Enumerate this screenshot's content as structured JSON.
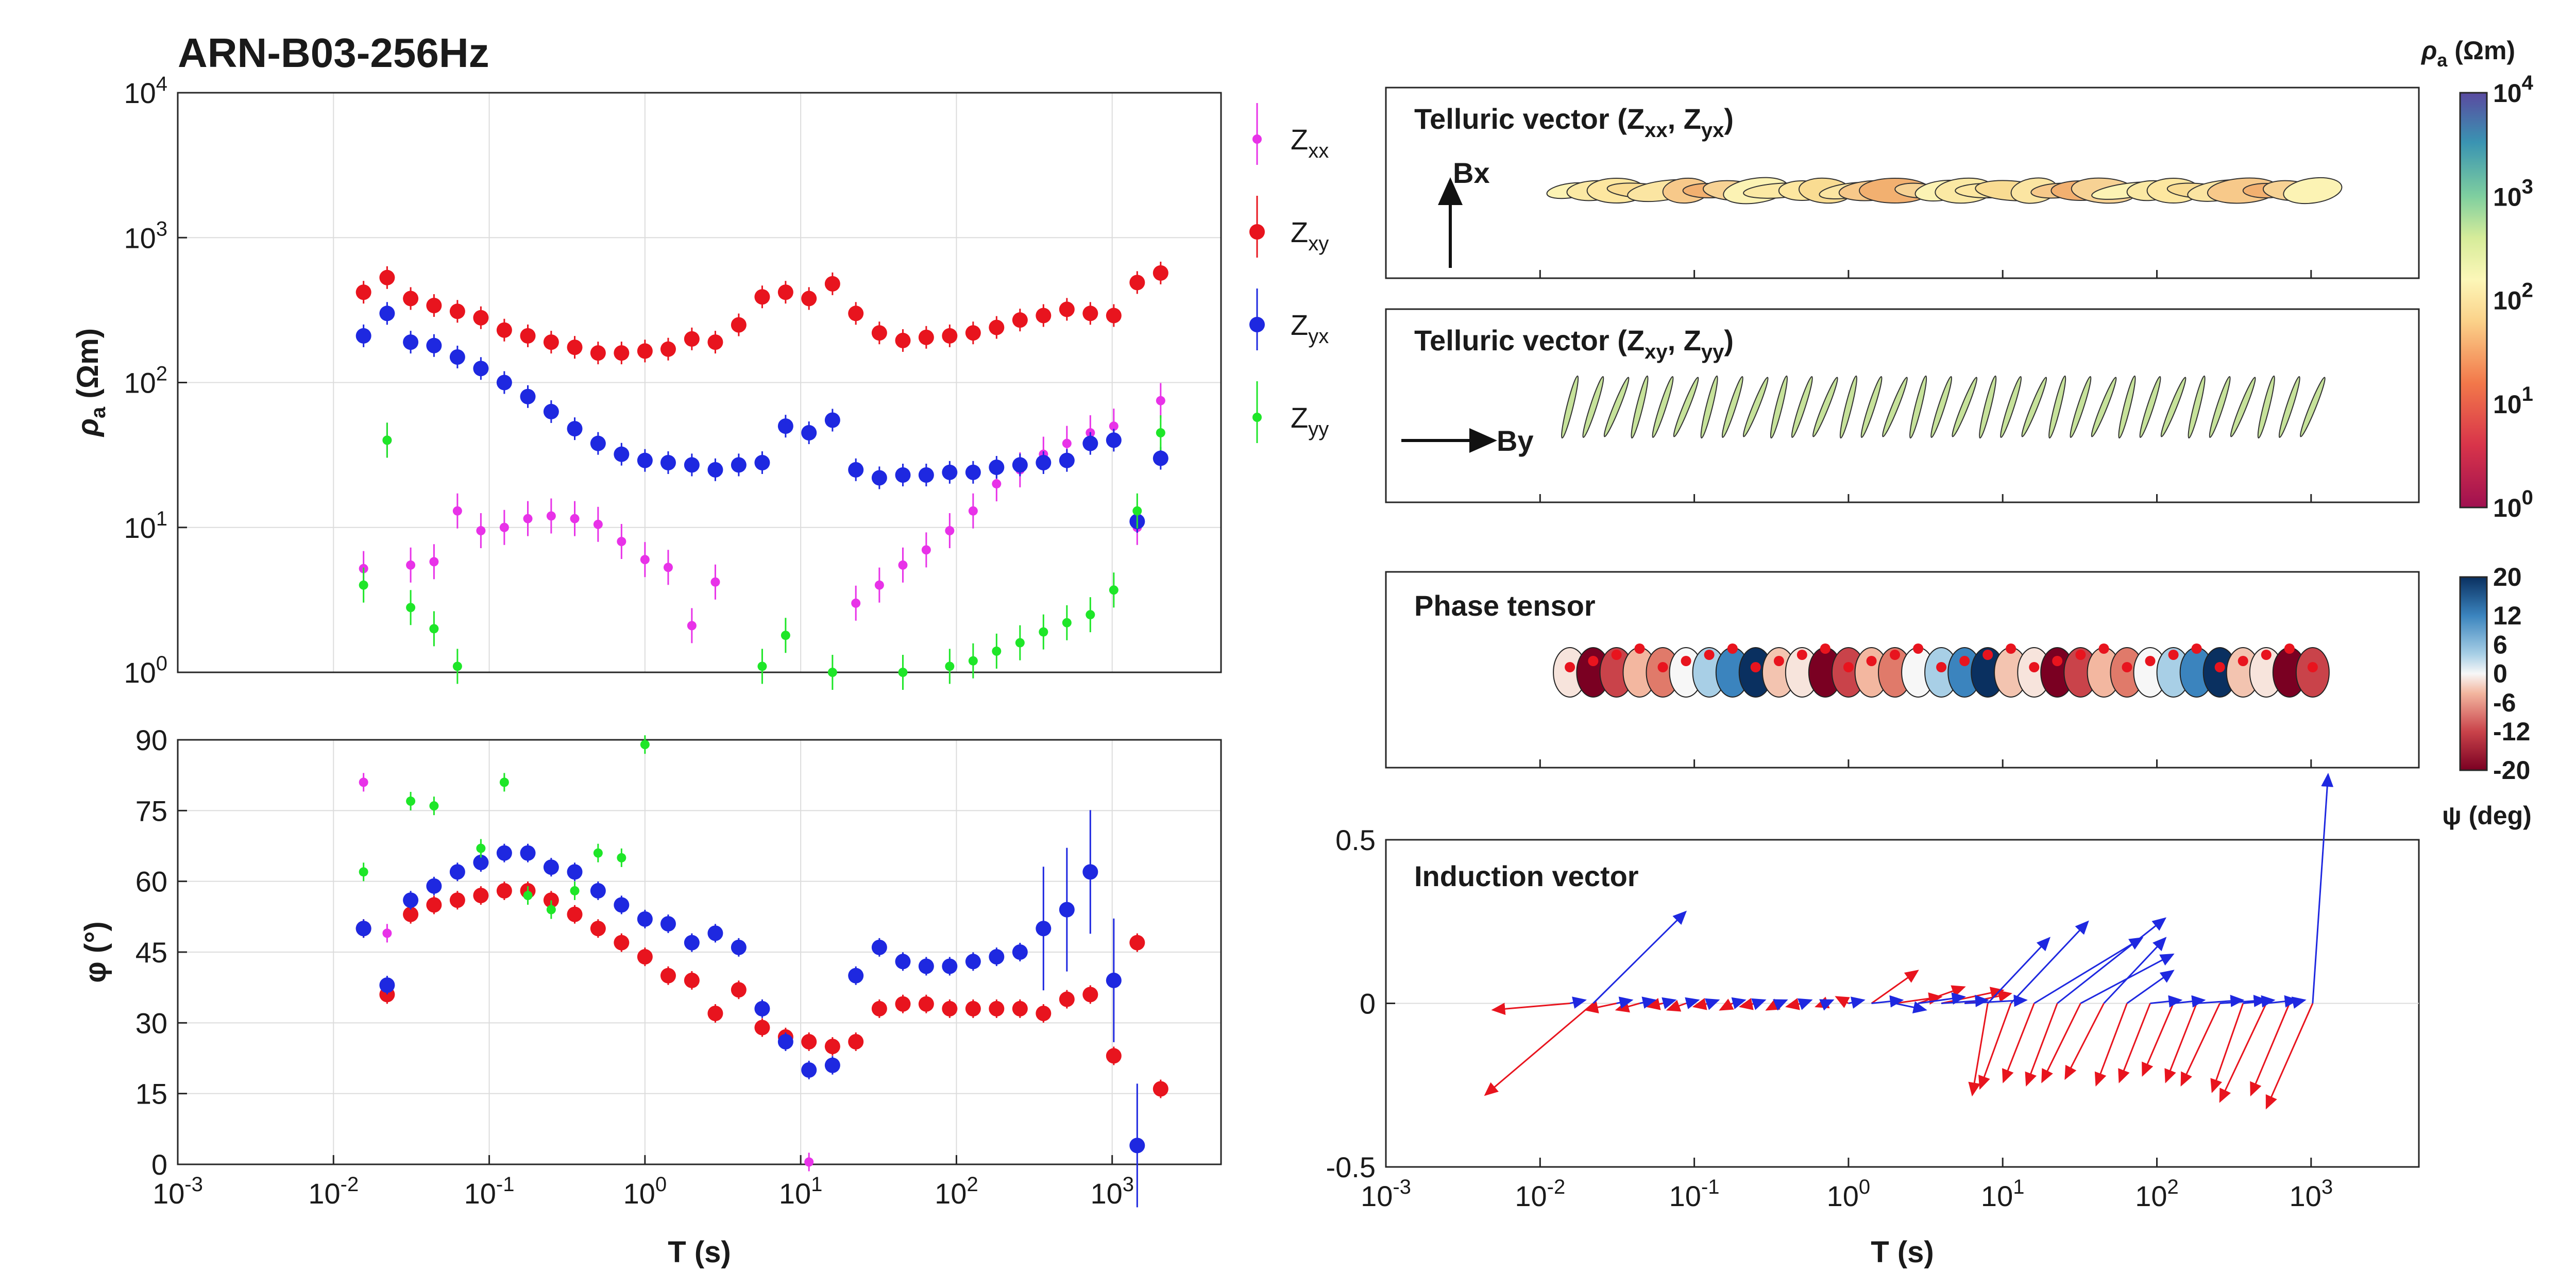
{
  "figure": {
    "title": "ARN-B03-256Hz",
    "xlabel": "T (s)"
  },
  "rho_panel": {
    "ylabel": "ρa (Ωm)",
    "yticks": [
      "10^0",
      "10^1",
      "10^2",
      "10^3",
      "10^4"
    ],
    "xticks": [
      "10^-3",
      "10^-2",
      "10^-1",
      "10^0",
      "10^1",
      "10^2",
      "10^3"
    ]
  },
  "phase_panel": {
    "ylabel": "φ (°)",
    "yticks": [
      "0",
      "15",
      "30",
      "45",
      "60",
      "75",
      "90"
    ]
  },
  "legend": {
    "items": [
      {
        "label": "Zxx",
        "sub": "xx",
        "color": "#e832e8"
      },
      {
        "label": "Zxy",
        "sub": "xy",
        "color": "#e8141e"
      },
      {
        "label": "Zyx",
        "sub": "yx",
        "color": "#1e28e0"
      },
      {
        "label": "Zyy",
        "sub": "yy",
        "color": "#1ee628"
      }
    ]
  },
  "right_panels": {
    "tel1_title": "Telluric vector (Zxx, Zyx)",
    "tel1_arrow": "Bx",
    "tel2_title": "Telluric vector (Zxy, Zyy)",
    "tel2_arrow": "By",
    "phase_tensor_title": "Phase tensor",
    "induction_title": "Induction vector",
    "induction_yticks": [
      "0.5",
      "0",
      "-0.5"
    ],
    "xticks": [
      "10^-3",
      "10^-2",
      "10^-1",
      "10^0",
      "10^1",
      "10^2",
      "10^3"
    ]
  },
  "colorbars": {
    "rho_label": "ρa (Ωm)",
    "rho_ticks": [
      "10^4",
      "10^3",
      "10^2",
      "10^1",
      "10^0"
    ],
    "psi_label": "ψ (deg)",
    "psi_ticks": [
      "20",
      "12",
      "6",
      "0",
      "-6",
      "-12",
      "-20"
    ]
  },
  "chart_data": [
    {
      "type": "scatter",
      "title": "ARN-B03-256Hz",
      "xlabel": "T (s)",
      "ylabel": "ρa (Ωm)",
      "xscale": "log",
      "yscale": "log",
      "xlim": [
        0.001,
        5000
      ],
      "ylim": [
        1,
        10000
      ],
      "grid": true,
      "legend": "right",
      "series": [
        {
          "name": "Zxx",
          "color": "#e832e8",
          "x": [
            0.0156,
            0.0221,
            0.0313,
            0.0442,
            0.0625,
            0.0884,
            0.125,
            0.177,
            0.25,
            0.354,
            0.5,
            0.707,
            1,
            1.41,
            2,
            2.83,
            4,
            5.66,
            8,
            11.3,
            16,
            22.6,
            32,
            45.3,
            64,
            90.5,
            128,
            181,
            256,
            362,
            512,
            724,
            1024,
            1448,
            2048
          ],
          "y": [
            5.2,
            40,
            5.5,
            5.8,
            13,
            9.5,
            10,
            11.5,
            12,
            11.5,
            10.5,
            8,
            6,
            5.3,
            2.1,
            4.2,
            null,
            null,
            null,
            null,
            null,
            3,
            4,
            5.5,
            7,
            9.5,
            13,
            20,
            25,
            32,
            38,
            45,
            50,
            10,
            75
          ]
        },
        {
          "name": "Zxy",
          "color": "#e8141e",
          "x": [
            0.0156,
            0.0221,
            0.0313,
            0.0442,
            0.0625,
            0.0884,
            0.125,
            0.177,
            0.25,
            0.354,
            0.5,
            0.707,
            1,
            1.41,
            2,
            2.83,
            4,
            5.66,
            8,
            11.3,
            16,
            22.6,
            32,
            45.3,
            64,
            90.5,
            128,
            181,
            256,
            362,
            512,
            724,
            1024,
            1448,
            2048
          ],
          "y": [
            420,
            530,
            380,
            340,
            310,
            280,
            230,
            210,
            190,
            175,
            160,
            160,
            165,
            170,
            200,
            190,
            250,
            390,
            420,
            380,
            480,
            300,
            220,
            195,
            205,
            210,
            220,
            240,
            270,
            290,
            320,
            300,
            290,
            490,
            570
          ]
        },
        {
          "name": "Zyx",
          "color": "#1e28e0",
          "x": [
            0.0156,
            0.0221,
            0.0313,
            0.0442,
            0.0625,
            0.0884,
            0.125,
            0.177,
            0.25,
            0.354,
            0.5,
            0.707,
            1,
            1.41,
            2,
            2.83,
            4,
            5.66,
            8,
            11.3,
            16,
            22.6,
            32,
            45.3,
            64,
            90.5,
            128,
            181,
            256,
            362,
            512,
            724,
            1024,
            1448,
            2048
          ],
          "y": [
            210,
            300,
            190,
            180,
            150,
            125,
            100,
            80,
            63,
            48,
            38,
            32,
            29,
            28,
            27,
            25,
            27,
            28,
            50,
            45,
            55,
            25,
            22,
            23,
            23,
            24,
            24,
            26,
            27,
            28,
            29,
            38,
            40,
            11,
            30
          ]
        },
        {
          "name": "Zyy",
          "color": "#1ee628",
          "x": [
            0.0156,
            0.0221,
            0.0313,
            0.0442,
            0.0625,
            5.66,
            8,
            16,
            45.3,
            90.5,
            128,
            181,
            256,
            362,
            512,
            724,
            1024,
            1448,
            2048
          ],
          "y": [
            4,
            40,
            2.8,
            2,
            1.1,
            1.1,
            1.8,
            1,
            1,
            1.1,
            1.2,
            1.4,
            1.6,
            1.9,
            2.2,
            2.5,
            3.7,
            13,
            45
          ]
        }
      ]
    },
    {
      "type": "scatter",
      "xlabel": "T (s)",
      "ylabel": "φ (°)",
      "xscale": "log",
      "xlim": [
        0.001,
        5000
      ],
      "ylim": [
        0,
        90
      ],
      "grid": true,
      "series": [
        {
          "name": "Zxx",
          "color": "#e832e8",
          "x": [
            0.0156,
            0.0221,
            11.3
          ],
          "y": [
            81,
            49,
            0.5
          ]
        },
        {
          "name": "Zxy",
          "color": "#e8141e",
          "x": [
            0.0156,
            0.0221,
            0.0313,
            0.0442,
            0.0625,
            0.0884,
            0.125,
            0.177,
            0.25,
            0.354,
            0.5,
            0.707,
            1,
            1.41,
            2,
            2.83,
            4,
            5.66,
            8,
            11.3,
            16,
            22.6,
            32,
            45.3,
            64,
            90.5,
            128,
            181,
            256,
            362,
            512,
            724,
            1024,
            1448,
            2048
          ],
          "y": [
            50,
            36,
            53,
            55,
            56,
            57,
            58,
            58,
            56,
            53,
            50,
            47,
            44,
            40,
            39,
            32,
            37,
            29,
            27,
            26,
            25,
            26,
            33,
            34,
            34,
            33,
            33,
            33,
            33,
            32,
            35,
            36,
            23,
            47,
            16
          ]
        },
        {
          "name": "Zyx",
          "color": "#1e28e0",
          "x": [
            0.0156,
            0.0221,
            0.0313,
            0.0442,
            0.0625,
            0.0884,
            0.125,
            0.177,
            0.25,
            0.354,
            0.5,
            0.707,
            1,
            1.41,
            2,
            2.83,
            4,
            5.66,
            8,
            11.3,
            16,
            22.6,
            32,
            45.3,
            64,
            90.5,
            128,
            181,
            256,
            362,
            512,
            724,
            1024,
            1448,
            2048
          ],
          "y": [
            50,
            38,
            56,
            59,
            62,
            64,
            66,
            66,
            63,
            62,
            58,
            55,
            52,
            51,
            47,
            49,
            46,
            33,
            26,
            20,
            21,
            40,
            46,
            43,
            42,
            42,
            43,
            44,
            45,
            50,
            54,
            62,
            39,
            4,
            null
          ]
        },
        {
          "name": "Zyy",
          "color": "#1ee628",
          "x": [
            0.0156,
            0.0221,
            0.0313,
            0.0442,
            0.0884,
            0.125,
            0.177,
            0.25,
            0.354,
            0.5,
            0.707,
            1
          ],
          "y": [
            62,
            null,
            77,
            76,
            67,
            81,
            57,
            54,
            58,
            66,
            65,
            89
          ]
        }
      ]
    },
    {
      "type": "scatter",
      "title": "Induction vector",
      "xlabel": "T (s)",
      "xscale": "log",
      "xlim": [
        0.001,
        5000
      ],
      "ylim": [
        -0.5,
        0.5
      ],
      "series": [
        {
          "name": "",
          "color": "#e8141e",
          "x": [
            0.0156,
            0.0221,
            0.0313,
            0.0442,
            0.0625,
            0.0884,
            0.125,
            0.177,
            0.25,
            0.354,
            0.5,
            0.707,
            1,
            1.41,
            2,
            2.83,
            4,
            5.66,
            8,
            11.3,
            16,
            22.6,
            32,
            45.3,
            64,
            90.5,
            128,
            181,
            256,
            362,
            512,
            724,
            1024
          ],
          "dx_dec": [
            -0.5,
            -0.7,
            -0.2,
            -0.15,
            -0.1,
            -0.12,
            -0.1,
            -0.08,
            -0.1,
            -0.08,
            -0.1,
            -0.06,
            -0.08,
            0.3,
            0.3,
            0.3,
            0.4,
            0.3,
            -0.1,
            -0.2,
            -0.2,
            -0.2,
            -0.25,
            -0.25,
            -0.2,
            -0.2,
            -0.2,
            -0.2,
            -0.25,
            -0.2,
            -0.3,
            -0.25,
            -0.3
          ],
          "dy": [
            -0.02,
            -0.28,
            -0.02,
            -0.02,
            -0.01,
            -0.02,
            -0.01,
            -0.02,
            -0.01,
            -0.02,
            -0.01,
            -0.01,
            0.02,
            0.1,
            0.02,
            0.05,
            0.04,
            0.03,
            -0.28,
            -0.26,
            -0.24,
            -0.25,
            -0.24,
            -0.23,
            -0.25,
            -0.24,
            -0.22,
            -0.24,
            -0.25,
            -0.27,
            -0.3,
            -0.28,
            -0.32
          ]
        },
        {
          "name": "",
          "color": "#1e28e0",
          "x": [
            0.0156,
            0.0221,
            0.0313,
            0.0442,
            0.0625,
            0.0884,
            0.125,
            0.177,
            0.25,
            0.354,
            0.5,
            0.707,
            1,
            1.41,
            2,
            2.83,
            4,
            5.66,
            8,
            11.3,
            16,
            22.6,
            32,
            45.3,
            64,
            90.5,
            128,
            181,
            256,
            362,
            512,
            724,
            1024
          ],
          "dx_dec": [
            0.1,
            0.6,
            0.1,
            0.1,
            0.08,
            0.08,
            0.06,
            0.08,
            0.06,
            0.05,
            0.06,
            0.05,
            0.1,
            0.2,
            0.2,
            0.3,
            0.3,
            0.4,
            0.4,
            0.5,
            0.7,
            0.7,
            0.6,
            0.4,
            0.3,
            0.2,
            0.2,
            0.3,
            0.3,
            0.2,
            0.2,
            0.1,
            0.1
          ],
          "dy": [
            0.01,
            0.28,
            0.01,
            0.01,
            0.01,
            0.01,
            0.01,
            0.01,
            0.01,
            0.01,
            0.01,
            0.01,
            0.01,
            0.01,
            -0.02,
            0.02,
            0.01,
            0.01,
            0.2,
            0.25,
            0.2,
            0.26,
            0.15,
            0.2,
            0.1,
            0.01,
            0.01,
            0.01,
            0.01,
            0.01,
            0.01,
            0.01,
            0.7
          ]
        }
      ]
    }
  ]
}
